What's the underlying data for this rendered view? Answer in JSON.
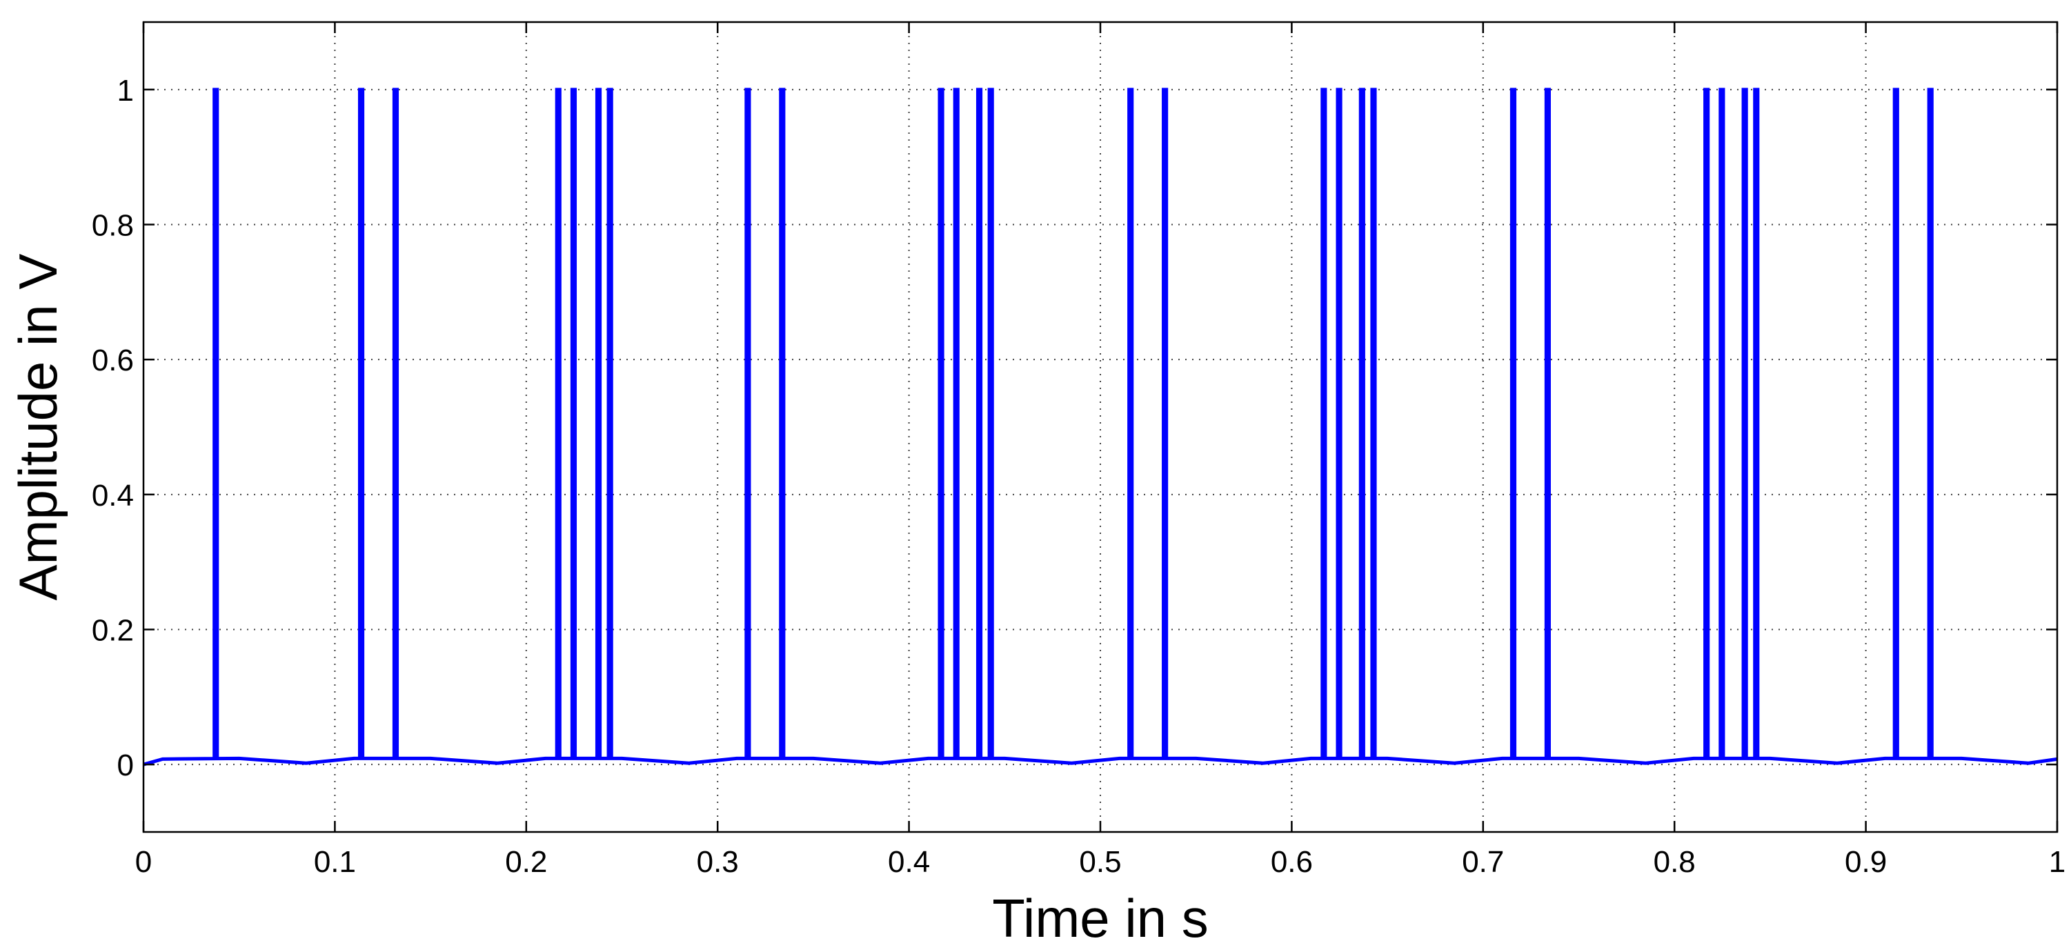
{
  "chart_data": {
    "type": "line",
    "xlabel": "Time in s",
    "ylabel": "Amplitude in V",
    "xlim": [
      0,
      1
    ],
    "ylim": [
      -0.1,
      1.1
    ],
    "x_ticks": [
      0,
      0.1,
      0.2,
      0.3,
      0.4,
      0.5,
      0.6,
      0.7,
      0.8,
      0.9,
      1
    ],
    "x_tick_labels": [
      "0",
      "0.1",
      "0.2",
      "0.3",
      "0.4",
      "0.5",
      "0.6",
      "0.7",
      "0.8",
      "0.9",
      "1"
    ],
    "y_ticks": [
      0,
      0.2,
      0.4,
      0.6,
      0.8,
      1
    ],
    "y_tick_labels": [
      "0",
      "0.2",
      "0.4",
      "0.6",
      "0.8",
      "1"
    ],
    "grid": true,
    "series": [
      {
        "color": "#0000ff",
        "pulse_width": 0.0015,
        "pulse_height": 1,
        "baseline": [
          [
            0,
            0
          ],
          [
            0.01,
            0.008
          ],
          [
            0.05,
            0.009
          ],
          [
            0.085,
            0.002
          ],
          [
            0.11,
            0.009
          ],
          [
            0.15,
            0.009
          ],
          [
            0.185,
            0.002
          ],
          [
            0.21,
            0.009
          ],
          [
            0.25,
            0.009
          ],
          [
            0.285,
            0.002
          ],
          [
            0.31,
            0.009
          ],
          [
            0.35,
            0.009
          ],
          [
            0.385,
            0.002
          ],
          [
            0.41,
            0.009
          ],
          [
            0.45,
            0.009
          ],
          [
            0.485,
            0.002
          ],
          [
            0.51,
            0.009
          ],
          [
            0.55,
            0.009
          ],
          [
            0.585,
            0.002
          ],
          [
            0.61,
            0.009
          ],
          [
            0.65,
            0.009
          ],
          [
            0.685,
            0.002
          ],
          [
            0.71,
            0.009
          ],
          [
            0.75,
            0.009
          ],
          [
            0.785,
            0.002
          ],
          [
            0.81,
            0.009
          ],
          [
            0.85,
            0.009
          ],
          [
            0.885,
            0.002
          ],
          [
            0.91,
            0.009
          ],
          [
            0.95,
            0.009
          ],
          [
            0.985,
            0.002
          ],
          [
            1,
            0.008
          ]
        ],
        "pulse_times": [
          0.037,
          0.113,
          0.131,
          0.216,
          0.224,
          0.237,
          0.243,
          0.315,
          0.333,
          0.416,
          0.424,
          0.436,
          0.442,
          0.515,
          0.533,
          0.616,
          0.624,
          0.636,
          0.642,
          0.715,
          0.733,
          0.816,
          0.824,
          0.836,
          0.842,
          0.915,
          0.933
        ]
      }
    ]
  }
}
